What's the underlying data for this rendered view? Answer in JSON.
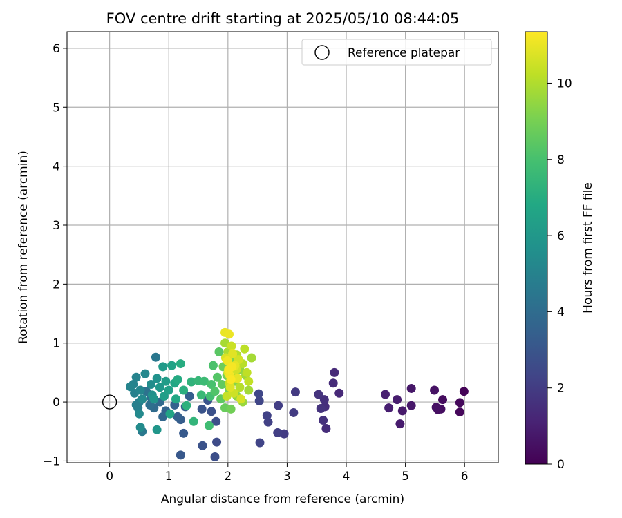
{
  "chart_data": {
    "type": "scatter",
    "title": "FOV centre drift starting at 2025/05/10 08:44:05",
    "xlabel": "Angular distance from reference (arcmin)",
    "ylabel": "Rotation from reference (arcmin)",
    "xlim": [
      -0.72,
      6.57
    ],
    "ylim": [
      -1.03,
      6.28
    ],
    "xticks": [
      0,
      1,
      2,
      3,
      4,
      5,
      6
    ],
    "yticks": [
      -1,
      0,
      1,
      2,
      3,
      4,
      5,
      6
    ],
    "grid": true,
    "legend": {
      "position": "top-right",
      "entries": [
        "Reference platepar"
      ]
    },
    "reference": {
      "x": 0,
      "y": 0
    },
    "colormap": "viridis",
    "colorbar": {
      "label": "Hours from first FF file",
      "range": [
        0,
        11.35
      ],
      "ticks": [
        0,
        2,
        4,
        6,
        8,
        10
      ]
    },
    "points": [
      {
        "x": 5.99,
        "y": 0.18,
        "t": 0.1
      },
      {
        "x": 5.92,
        "y": -0.17,
        "t": 0.2
      },
      {
        "x": 5.92,
        "y": -0.01,
        "t": 0.25
      },
      {
        "x": 5.63,
        "y": 0.04,
        "t": 0.35
      },
      {
        "x": 5.6,
        "y": -0.12,
        "t": 0.4
      },
      {
        "x": 5.55,
        "y": -0.13,
        "t": 0.45
      },
      {
        "x": 5.52,
        "y": -0.09,
        "t": 0.5
      },
      {
        "x": 5.49,
        "y": 0.2,
        "t": 0.55
      },
      {
        "x": 5.1,
        "y": 0.23,
        "t": 0.7
      },
      {
        "x": 5.1,
        "y": -0.06,
        "t": 0.75
      },
      {
        "x": 4.95,
        "y": -0.15,
        "t": 0.8
      },
      {
        "x": 4.91,
        "y": -0.37,
        "t": 0.85
      },
      {
        "x": 4.86,
        "y": 0.04,
        "t": 0.9
      },
      {
        "x": 4.72,
        "y": -0.1,
        "t": 0.95
      },
      {
        "x": 4.66,
        "y": 0.13,
        "t": 1.0
      },
      {
        "x": 3.88,
        "y": 0.15,
        "t": 1.3
      },
      {
        "x": 3.8,
        "y": 0.5,
        "t": 1.35
      },
      {
        "x": 3.78,
        "y": 0.32,
        "t": 1.4
      },
      {
        "x": 3.66,
        "y": -0.45,
        "t": 1.45
      },
      {
        "x": 3.64,
        "y": -0.08,
        "t": 1.5
      },
      {
        "x": 3.63,
        "y": 0.04,
        "t": 1.55
      },
      {
        "x": 3.61,
        "y": -0.31,
        "t": 1.6
      },
      {
        "x": 3.57,
        "y": -0.11,
        "t": 1.65
      },
      {
        "x": 3.53,
        "y": 0.13,
        "t": 1.7
      },
      {
        "x": 3.14,
        "y": 0.17,
        "t": 1.9
      },
      {
        "x": 3.11,
        "y": -0.18,
        "t": 1.95
      },
      {
        "x": 2.95,
        "y": -0.54,
        "t": 2.0
      },
      {
        "x": 2.85,
        "y": -0.06,
        "t": 2.05
      },
      {
        "x": 2.84,
        "y": -0.52,
        "t": 2.1
      },
      {
        "x": 2.68,
        "y": -0.34,
        "t": 2.15
      },
      {
        "x": 2.66,
        "y": -0.23,
        "t": 2.2
      },
      {
        "x": 2.54,
        "y": -0.69,
        "t": 2.3
      },
      {
        "x": 2.53,
        "y": 0.02,
        "t": 2.35
      },
      {
        "x": 2.52,
        "y": 0.14,
        "t": 2.4
      },
      {
        "x": 1.81,
        "y": -0.68,
        "t": 2.6
      },
      {
        "x": 1.78,
        "y": -0.93,
        "t": 2.7
      },
      {
        "x": 1.8,
        "y": -0.33,
        "t": 2.75
      },
      {
        "x": 1.72,
        "y": -0.16,
        "t": 2.8
      },
      {
        "x": 1.57,
        "y": -0.74,
        "t": 2.85
      },
      {
        "x": 1.56,
        "y": -0.12,
        "t": 2.9
      },
      {
        "x": 1.66,
        "y": 0.03,
        "t": 2.95
      },
      {
        "x": 1.2,
        "y": -0.9,
        "t": 3.1
      },
      {
        "x": 1.25,
        "y": -0.53,
        "t": 3.2
      },
      {
        "x": 1.2,
        "y": -0.3,
        "t": 3.3
      },
      {
        "x": 1.28,
        "y": -0.08,
        "t": 3.35
      },
      {
        "x": 1.35,
        "y": 0.1,
        "t": 3.4
      },
      {
        "x": 1.15,
        "y": -0.25,
        "t": 3.45
      },
      {
        "x": 1.1,
        "y": -0.05,
        "t": 3.55
      },
      {
        "x": 0.95,
        "y": -0.15,
        "t": 3.65
      },
      {
        "x": 0.9,
        "y": -0.25,
        "t": 3.75
      },
      {
        "x": 0.85,
        "y": 0.0,
        "t": 3.85
      },
      {
        "x": 0.75,
        "y": -0.1,
        "t": 3.95
      },
      {
        "x": 0.7,
        "y": 0.08,
        "t": 4.05
      },
      {
        "x": 0.68,
        "y": -0.05,
        "t": 4.15
      },
      {
        "x": 0.62,
        "y": 0.18,
        "t": 4.25
      },
      {
        "x": 0.78,
        "y": 0.76,
        "t": 4.5
      },
      {
        "x": 0.55,
        "y": -0.5,
        "t": 4.6
      },
      {
        "x": 0.48,
        "y": -0.1,
        "t": 4.7
      },
      {
        "x": 0.5,
        "y": 0.0,
        "t": 4.8
      },
      {
        "x": 0.45,
        "y": -0.05,
        "t": 4.85
      },
      {
        "x": 0.42,
        "y": 0.15,
        "t": 4.9
      },
      {
        "x": 0.4,
        "y": 0.3,
        "t": 5.0
      },
      {
        "x": 0.45,
        "y": 0.42,
        "t": 5.05
      },
      {
        "x": 0.35,
        "y": 0.26,
        "t": 5.1
      },
      {
        "x": 0.52,
        "y": 0.2,
        "t": 5.15
      },
      {
        "x": 0.6,
        "y": 0.48,
        "t": 5.2
      },
      {
        "x": 0.55,
        "y": 0.05,
        "t": 5.3
      },
      {
        "x": 0.5,
        "y": -0.2,
        "t": 5.35
      },
      {
        "x": 0.52,
        "y": -0.43,
        "t": 5.4
      },
      {
        "x": 0.7,
        "y": 0.3,
        "t": 5.5
      },
      {
        "x": 0.72,
        "y": 0.12,
        "t": 5.6
      },
      {
        "x": 0.8,
        "y": 0.4,
        "t": 5.7
      },
      {
        "x": 0.75,
        "y": 0.05,
        "t": 5.8
      },
      {
        "x": 0.8,
        "y": -0.47,
        "t": 5.9
      },
      {
        "x": 0.85,
        "y": 0.25,
        "t": 6.0
      },
      {
        "x": 0.9,
        "y": 0.6,
        "t": 6.1
      },
      {
        "x": 0.95,
        "y": 0.35,
        "t": 6.2
      },
      {
        "x": 0.92,
        "y": 0.1,
        "t": 6.3
      },
      {
        "x": 1.0,
        "y": 0.2,
        "t": 6.4
      },
      {
        "x": 1.05,
        "y": 0.62,
        "t": 6.5
      },
      {
        "x": 1.02,
        "y": -0.2,
        "t": 6.6
      },
      {
        "x": 1.1,
        "y": 0.32,
        "t": 6.7
      },
      {
        "x": 1.12,
        "y": 0.05,
        "t": 6.8
      },
      {
        "x": 1.15,
        "y": 0.38,
        "t": 6.9
      },
      {
        "x": 1.2,
        "y": 0.65,
        "t": 7.0
      },
      {
        "x": 1.25,
        "y": 0.2,
        "t": 7.1
      },
      {
        "x": 1.3,
        "y": -0.06,
        "t": 7.2
      },
      {
        "x": 1.38,
        "y": 0.34,
        "t": 7.3
      },
      {
        "x": 1.42,
        "y": -0.33,
        "t": 7.4
      },
      {
        "x": 1.5,
        "y": 0.36,
        "t": 7.5
      },
      {
        "x": 1.55,
        "y": 0.12,
        "t": 7.6
      },
      {
        "x": 1.6,
        "y": 0.35,
        "t": 7.7
      },
      {
        "x": 1.68,
        "y": -0.4,
        "t": 7.8
      },
      {
        "x": 1.7,
        "y": 0.1,
        "t": 7.9
      },
      {
        "x": 1.72,
        "y": 0.3,
        "t": 8.0
      },
      {
        "x": 1.75,
        "y": 0.62,
        "t": 8.1
      },
      {
        "x": 1.78,
        "y": 0.18,
        "t": 8.2
      },
      {
        "x": 1.82,
        "y": 0.42,
        "t": 8.3
      },
      {
        "x": 1.85,
        "y": 0.85,
        "t": 8.4
      },
      {
        "x": 1.88,
        "y": 0.05,
        "t": 8.5
      },
      {
        "x": 1.9,
        "y": 0.3,
        "t": 8.6
      },
      {
        "x": 1.95,
        "y": -0.1,
        "t": 8.7
      },
      {
        "x": 1.92,
        "y": 0.6,
        "t": 8.8
      },
      {
        "x": 2.05,
        "y": -0.12,
        "t": 8.9
      },
      {
        "x": 1.98,
        "y": 0.45,
        "t": 9.0
      },
      {
        "x": 2.02,
        "y": 0.2,
        "t": 9.1
      },
      {
        "x": 2.08,
        "y": 0.7,
        "t": 9.2
      },
      {
        "x": 2.12,
        "y": 0.35,
        "t": 9.3
      },
      {
        "x": 2.15,
        "y": 0.1,
        "t": 9.4
      },
      {
        "x": 2.2,
        "y": 0.55,
        "t": 9.5
      },
      {
        "x": 2.25,
        "y": 0.0,
        "t": 9.6
      },
      {
        "x": 2.3,
        "y": 0.45,
        "t": 9.7
      },
      {
        "x": 2.35,
        "y": 0.2,
        "t": 9.75
      },
      {
        "x": 2.4,
        "y": 0.75,
        "t": 9.8
      },
      {
        "x": 1.95,
        "y": 1.0,
        "t": 9.85
      },
      {
        "x": 2.0,
        "y": 0.85,
        "t": 9.9
      },
      {
        "x": 2.05,
        "y": 0.6,
        "t": 9.95
      },
      {
        "x": 2.1,
        "y": 0.4,
        "t": 10.0
      },
      {
        "x": 2.15,
        "y": 0.8,
        "t": 10.05
      },
      {
        "x": 2.2,
        "y": 0.25,
        "t": 10.1
      },
      {
        "x": 2.25,
        "y": 0.65,
        "t": 10.15
      },
      {
        "x": 2.28,
        "y": 0.9,
        "t": 10.2
      },
      {
        "x": 2.32,
        "y": 0.5,
        "t": 10.25
      },
      {
        "x": 2.35,
        "y": 0.35,
        "t": 10.3
      },
      {
        "x": 1.98,
        "y": 0.1,
        "t": 10.35
      },
      {
        "x": 2.02,
        "y": 0.32,
        "t": 10.4
      },
      {
        "x": 2.06,
        "y": 0.95,
        "t": 10.45
      },
      {
        "x": 2.1,
        "y": 0.15,
        "t": 10.5
      },
      {
        "x": 2.14,
        "y": 0.55,
        "t": 10.55
      },
      {
        "x": 2.18,
        "y": 0.72,
        "t": 10.6
      },
      {
        "x": 2.22,
        "y": 0.05,
        "t": 10.65
      },
      {
        "x": 1.96,
        "y": 0.75,
        "t": 10.7
      },
      {
        "x": 2.0,
        "y": 0.5,
        "t": 10.75
      },
      {
        "x": 2.04,
        "y": 0.25,
        "t": 10.8
      },
      {
        "x": 2.08,
        "y": 0.82,
        "t": 10.85
      },
      {
        "x": 2.12,
        "y": 0.62,
        "t": 10.9
      },
      {
        "x": 2.16,
        "y": 0.4,
        "t": 10.95
      },
      {
        "x": 1.95,
        "y": 1.18,
        "t": 11.0
      },
      {
        "x": 2.02,
        "y": 1.15,
        "t": 11.05
      },
      {
        "x": 1.99,
        "y": 0.7,
        "t": 11.1
      },
      {
        "x": 2.03,
        "y": 0.45,
        "t": 11.15
      },
      {
        "x": 2.07,
        "y": 0.6,
        "t": 11.2
      },
      {
        "x": 2.01,
        "y": 0.55,
        "t": 11.25
      },
      {
        "x": 2.05,
        "y": 0.38,
        "t": 11.3
      }
    ]
  }
}
